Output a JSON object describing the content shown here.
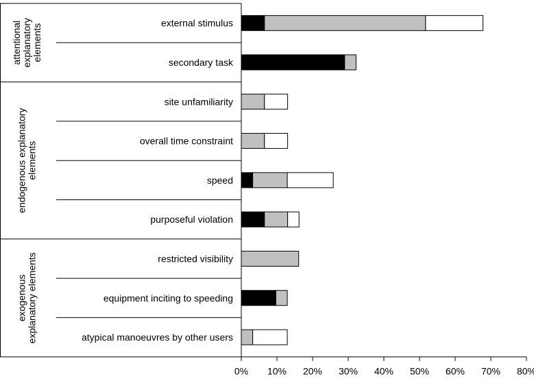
{
  "chart_data": {
    "type": "bar",
    "orientation": "horizontal",
    "stacked": true,
    "title": "",
    "xlabel": "",
    "ylabel": "",
    "xlim": [
      0,
      80
    ],
    "x_ticks": [
      "0%",
      "10%",
      "20%",
      "30%",
      "40%",
      "50%",
      "60%",
      "70%",
      "80%"
    ],
    "grid": false,
    "legend": "none",
    "groups": [
      {
        "label": [
          "attentional",
          "explanatory",
          "elements"
        ],
        "categories": 2
      },
      {
        "label": [
          "endogenous explanatory",
          "elements"
        ],
        "categories": 4
      },
      {
        "label": [
          "exogenous",
          "explanatory elements"
        ],
        "categories": 3
      }
    ],
    "categories": [
      "external stimulus",
      "secondary task",
      "site unfamiliarity",
      "overall time constraint",
      "speed",
      "purposeful violation",
      "restricted visibility",
      "equipment inciting to speeding",
      "atypical manoeuvres by other users"
    ],
    "series": [
      {
        "color": "#000000",
        "values": [
          6.5,
          29.0,
          0,
          0,
          3.2,
          6.5,
          0,
          9.7,
          0
        ]
      },
      {
        "color": "#c0c0c0",
        "values": [
          45.2,
          3.2,
          6.5,
          6.5,
          9.7,
          6.5,
          16.1,
          3.2,
          3.2
        ]
      },
      {
        "color": "#ffffff",
        "values": [
          16.1,
          0,
          6.5,
          6.5,
          12.9,
          3.2,
          0,
          0,
          9.7
        ]
      }
    ]
  }
}
